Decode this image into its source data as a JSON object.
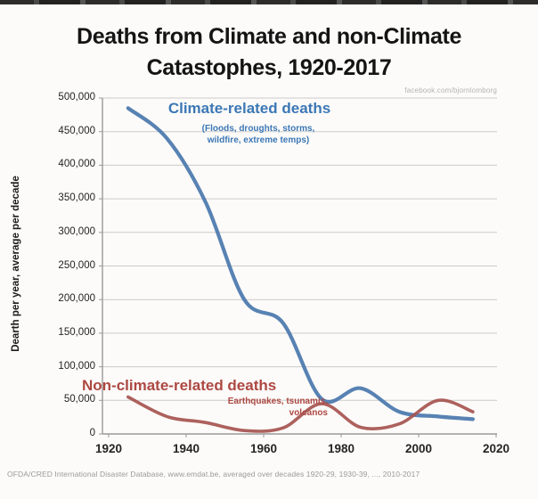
{
  "title": {
    "line1": "Deaths from Climate and non-Climate",
    "line2": "Catastophes, 1920-2017"
  },
  "watermark": "facebook.com/bjornlomborg",
  "footer": "OFDA/CRED International Disaster Database, www.emdat.be, averaged over decades 1920-29, 1930-39, ..., 2010-2017",
  "colors": {
    "climate_line": "#4a77ad",
    "nonclimate_line": "#a6544f",
    "grid": "#cbcbcb",
    "axis": "#9a9a9a",
    "title_text": "#141414",
    "climate_label": "#3c77b5",
    "nonclimate_label": "#ad4842",
    "watermark_text": "#b3b3b3",
    "footer_text": "#9a9a9a"
  },
  "chart_data": {
    "type": "line",
    "title": "Deaths from Climate and non-Climate Catastophes, 1920-2017",
    "xlabel": "",
    "ylabel": "Dearth per year, average per decade",
    "xlim": [
      1918,
      2020
    ],
    "ylim": [
      0,
      500000
    ],
    "grid": true,
    "legend_position": "inline-annotations",
    "x_ticks": [
      1920,
      1940,
      1960,
      1980,
      2000,
      2020
    ],
    "y_tick_values": [
      0,
      50000,
      100000,
      150000,
      200000,
      250000,
      300000,
      350000,
      400000,
      450000,
      500000
    ],
    "y_tick_labels": [
      "0",
      "50,000",
      "100,000",
      "150,000",
      "200,000",
      "250,000",
      "300,000",
      "350,000",
      "400,000",
      "450,000",
      "500,000"
    ],
    "x": [
      1925,
      1935,
      1945,
      1955,
      1965,
      1975,
      1985,
      1995,
      2005,
      2014
    ],
    "series": [
      {
        "name": "Climate-related deaths",
        "subtitle": "(Floods, droughts, storms, wildfire, extreme temps)",
        "color": "#4a77ad",
        "stroke_width": 4.2,
        "values": [
          485000,
          440000,
          345000,
          200000,
          165000,
          52000,
          68000,
          33000,
          26000,
          22000
        ]
      },
      {
        "name": "Non-climate-related deaths",
        "subtitle": "Earthquakes, tsunamis, volcanos",
        "color": "#a6544f",
        "stroke_width": 3.6,
        "values": [
          55000,
          26000,
          17000,
          5000,
          9000,
          45000,
          10000,
          15000,
          50000,
          33000
        ]
      }
    ],
    "annotations": {
      "climate": {
        "label": "Climate-related deaths",
        "sub1": "(Floods, droughts, storms,",
        "sub2": "wildfire, extreme temps)"
      },
      "nonclimate": {
        "label": "Non-climate-related deaths",
        "sub1": "Earthquakes, tsunamis,",
        "sub2": "volcanos"
      }
    }
  }
}
